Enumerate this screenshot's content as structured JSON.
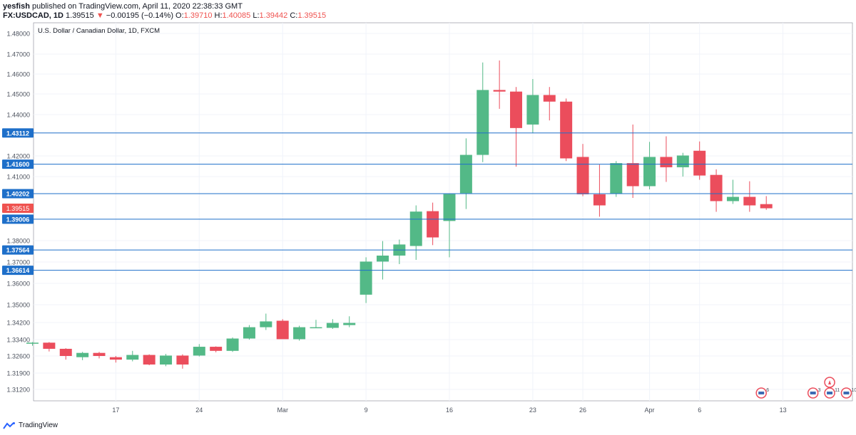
{
  "header": {
    "publisher": "yesfish",
    "published_text": "published on TradingView.com, April 11, 2020 22:38:33 GMT",
    "symbol": "FX:USDCAD, 1D",
    "last": "1.39515",
    "change_arrow": "▼",
    "change": "−0.00195 (−0.14%)",
    "o_label": "O:",
    "o_value": "1.39710",
    "h_label": "H:",
    "h_value": "1.40085",
    "l_label": "L:",
    "l_value": "1.39442",
    "c_label": "C:",
    "c_value": "1.39515"
  },
  "footer": {
    "brand": "TradingView"
  },
  "chart_data": {
    "type": "candlestick",
    "title": "U.S. Dollar / Canadian Dollar, 1D, FXCM",
    "y_axis_labels": [
      1.48,
      1.47,
      1.46,
      1.45,
      1.44,
      1.42,
      1.41,
      1.38,
      1.37,
      1.36,
      1.35,
      1.342,
      1.334,
      1.326,
      1.319,
      1.312
    ],
    "y_axis_text": [
      "1.48000",
      "1.47000",
      "1.46000",
      "1.45000",
      "1.44000",
      "1.42000",
      "1.41000",
      "1.38000",
      "1.37000",
      "1.36000",
      "1.35000",
      "1.34200",
      "1.33400",
      "1.32600",
      "1.31900",
      "1.31200"
    ],
    "x_ticks": [
      {
        "label": "17",
        "index": 5
      },
      {
        "label": "24",
        "index": 10
      },
      {
        "label": "Mar",
        "index": 15
      },
      {
        "label": "9",
        "index": 20
      },
      {
        "label": "16",
        "index": 25
      },
      {
        "label": "23",
        "index": 30
      },
      {
        "label": "26",
        "index": 33
      },
      {
        "label": "Apr",
        "index": 37
      },
      {
        "label": "6",
        "index": 40
      },
      {
        "label": "13",
        "index": 45
      }
    ],
    "horizontal_lines": [
      {
        "label": "1.43112",
        "value": 1.43112,
        "color": "#1e6fc9"
      },
      {
        "label": "1.41600",
        "value": 1.416,
        "color": "#1e6fc9"
      },
      {
        "label": "1.40202",
        "value": 1.40202,
        "color": "#1e6fc9"
      },
      {
        "label": "1.39006",
        "value": 1.39006,
        "color": "#1e6fc9"
      },
      {
        "label": "1.37564",
        "value": 1.37564,
        "color": "#1e6fc9"
      },
      {
        "label": "1.36614",
        "value": 1.36614,
        "color": "#1e6fc9"
      }
    ],
    "last_price": {
      "label": "1.39515",
      "value": 1.39515,
      "color": "#ef5350"
    },
    "colors": {
      "up": "#53b987",
      "down": "#eb4d5c",
      "level": "#1e6fc9",
      "grid": "#f0f3fa",
      "axis_text": "#4c525e"
    },
    "candles": [
      {
        "o": 1.332,
        "h": 1.3328,
        "l": 1.331,
        "c": 1.3325
      },
      {
        "o": 1.3325,
        "h": 1.3328,
        "l": 1.3282,
        "c": 1.3295
      },
      {
        "o": 1.3295,
        "h": 1.3298,
        "l": 1.3245,
        "c": 1.326
      },
      {
        "o": 1.3255,
        "h": 1.328,
        "l": 1.3243,
        "c": 1.3275
      },
      {
        "o": 1.3275,
        "h": 1.328,
        "l": 1.325,
        "c": 1.326
      },
      {
        "o": 1.3255,
        "h": 1.326,
        "l": 1.3233,
        "c": 1.3245
      },
      {
        "o": 1.3245,
        "h": 1.3285,
        "l": 1.3238,
        "c": 1.3265
      },
      {
        "o": 1.3265,
        "h": 1.3268,
        "l": 1.3222,
        "c": 1.3225
      },
      {
        "o": 1.3225,
        "h": 1.327,
        "l": 1.3218,
        "c": 1.3262
      },
      {
        "o": 1.3262,
        "h": 1.3268,
        "l": 1.3208,
        "c": 1.3225
      },
      {
        "o": 1.3262,
        "h": 1.3318,
        "l": 1.3258,
        "c": 1.3305
      },
      {
        "o": 1.3305,
        "h": 1.3307,
        "l": 1.3278,
        "c": 1.3285
      },
      {
        "o": 1.3285,
        "h": 1.335,
        "l": 1.328,
        "c": 1.3345
      },
      {
        "o": 1.3345,
        "h": 1.3408,
        "l": 1.334,
        "c": 1.3398
      },
      {
        "o": 1.3398,
        "h": 1.346,
        "l": 1.3385,
        "c": 1.3425
      },
      {
        "o": 1.3428,
        "h": 1.3435,
        "l": 1.3345,
        "c": 1.3342
      },
      {
        "o": 1.3342,
        "h": 1.3405,
        "l": 1.3335,
        "c": 1.3398
      },
      {
        "o": 1.3396,
        "h": 1.3432,
        "l": 1.3395,
        "c": 1.3398
      },
      {
        "o": 1.3395,
        "h": 1.3435,
        "l": 1.339,
        "c": 1.3418
      },
      {
        "o": 1.3408,
        "h": 1.3448,
        "l": 1.3398,
        "c": 1.3418
      },
      {
        "o": 1.3547,
        "h": 1.3722,
        "l": 1.3508,
        "c": 1.3702
      },
      {
        "o": 1.3702,
        "h": 1.3798,
        "l": 1.3618,
        "c": 1.373
      },
      {
        "o": 1.373,
        "h": 1.3805,
        "l": 1.369,
        "c": 1.3782
      },
      {
        "o": 1.3775,
        "h": 1.3965,
        "l": 1.371,
        "c": 1.3936
      },
      {
        "o": 1.3938,
        "h": 1.3978,
        "l": 1.3779,
        "c": 1.3815
      },
      {
        "o": 1.3892,
        "h": 1.402,
        "l": 1.3722,
        "c": 1.4018
      },
      {
        "o": 1.4022,
        "h": 1.4285,
        "l": 1.3948,
        "c": 1.4205
      },
      {
        "o": 1.4205,
        "h": 1.4658,
        "l": 1.417,
        "c": 1.452
      },
      {
        "o": 1.452,
        "h": 1.4668,
        "l": 1.4428,
        "c": 1.4512
      },
      {
        "o": 1.4512,
        "h": 1.4535,
        "l": 1.4148,
        "c": 1.4335
      },
      {
        "o": 1.4352,
        "h": 1.4575,
        "l": 1.431,
        "c": 1.4495
      },
      {
        "o": 1.4495,
        "h": 1.4535,
        "l": 1.4372,
        "c": 1.4463
      },
      {
        "o": 1.4463,
        "h": 1.4478,
        "l": 1.4175,
        "c": 1.4188
      },
      {
        "o": 1.4195,
        "h": 1.4258,
        "l": 1.4008,
        "c": 1.4017
      },
      {
        "o": 1.4017,
        "h": 1.4158,
        "l": 1.3912,
        "c": 1.3965
      },
      {
        "o": 1.402,
        "h": 1.4175,
        "l": 1.4005,
        "c": 1.4165
      },
      {
        "o": 1.4165,
        "h": 1.4352,
        "l": 1.4,
        "c": 1.4055
      },
      {
        "o": 1.4055,
        "h": 1.4268,
        "l": 1.404,
        "c": 1.4195
      },
      {
        "o": 1.4195,
        "h": 1.4295,
        "l": 1.4075,
        "c": 1.4145
      },
      {
        "o": 1.4145,
        "h": 1.4215,
        "l": 1.41,
        "c": 1.4202
      },
      {
        "o": 1.4225,
        "h": 1.427,
        "l": 1.4085,
        "c": 1.4105
      },
      {
        "o": 1.4108,
        "h": 1.4135,
        "l": 1.3935,
        "c": 1.3985
      },
      {
        "o": 1.3985,
        "h": 1.4085,
        "l": 1.3972,
        "c": 1.4005
      },
      {
        "o": 1.4005,
        "h": 1.4078,
        "l": 1.3935,
        "c": 1.3965
      },
      {
        "o": 1.3971,
        "h": 1.40085,
        "l": 1.39442,
        "c": 1.39515
      }
    ],
    "event_markers": [
      {
        "index": 43.7,
        "label": "6"
      },
      {
        "index": 46.8,
        "label": "3"
      },
      {
        "index": 47.8,
        "label": "11"
      },
      {
        "index": 48.8,
        "label": "10"
      }
    ]
  }
}
